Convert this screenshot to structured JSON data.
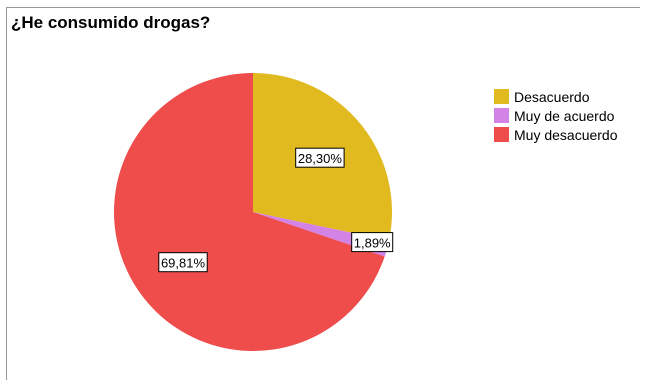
{
  "chart_data": {
    "type": "pie",
    "title": "¿He consumido drogas?",
    "slices": [
      {
        "name": "Desacuerdo",
        "value": 28.3,
        "label": "28,30%",
        "color": "#e0ba1f"
      },
      {
        "name": "Muy de acuerdo",
        "value": 1.89,
        "label": "1,89%",
        "color": "#d382e6"
      },
      {
        "name": "Muy desacuerdo",
        "value": 69.81,
        "label": "69,81%",
        "color": "#ef4c4c"
      }
    ],
    "start_angle": "12 o'clock",
    "direction": "clockwise",
    "legend_position": "right"
  }
}
